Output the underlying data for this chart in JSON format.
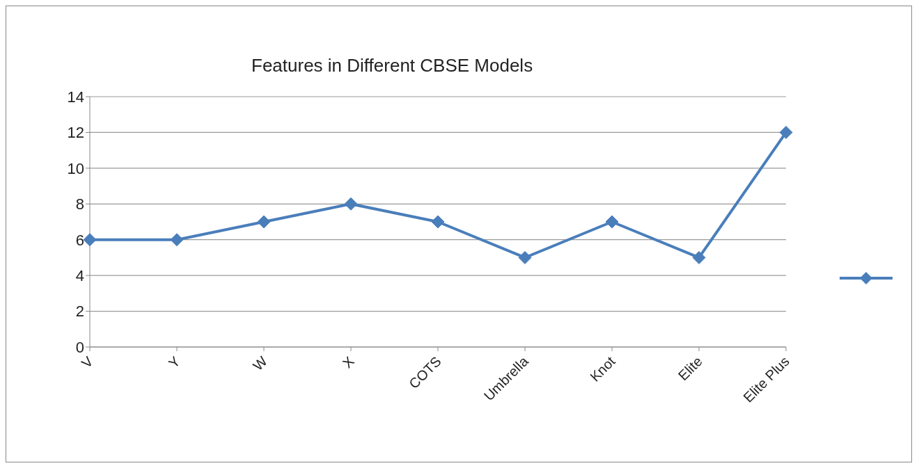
{
  "chart_data": {
    "type": "line",
    "title": "Features in Different CBSE Models",
    "categories": [
      "V",
      "Y",
      "W",
      "X",
      "COTS",
      "Umbrella",
      "Knot",
      "Elite",
      "Elite Plus"
    ],
    "series": [
      {
        "color": "#4a7ebb",
        "values": [
          6,
          6,
          7,
          8,
          7,
          5,
          7,
          5,
          12
        ]
      }
    ],
    "ylim": [
      0,
      14
    ],
    "yticks": [
      0,
      2,
      4,
      6,
      8,
      10,
      12,
      14
    ],
    "grid": "y",
    "marker": "diamond",
    "line_style": "solid"
  }
}
